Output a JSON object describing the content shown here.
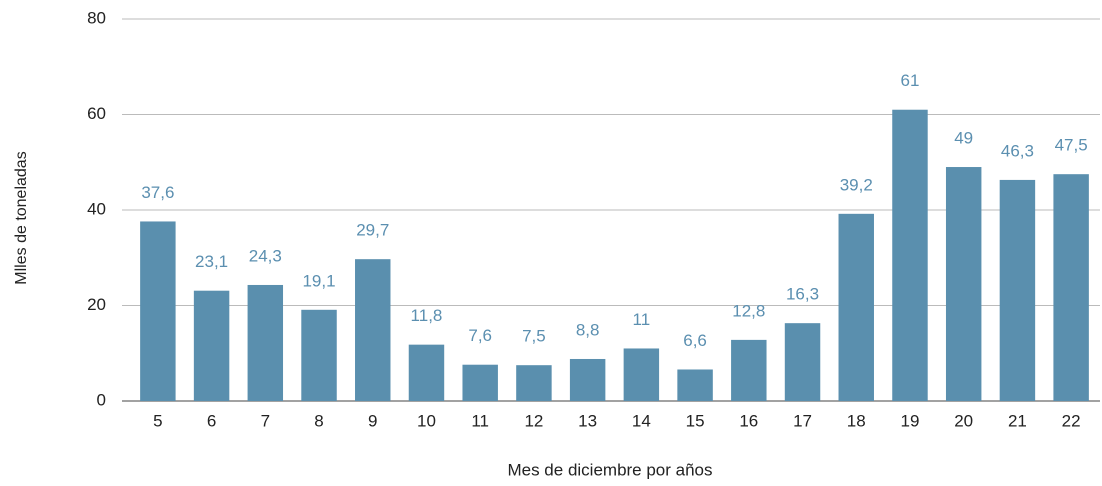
{
  "chart_data": {
    "type": "bar",
    "categories": [
      "5",
      "6",
      "7",
      "8",
      "9",
      "10",
      "11",
      "12",
      "13",
      "14",
      "15",
      "16",
      "17",
      "18",
      "19",
      "20",
      "21",
      "22"
    ],
    "values": [
      37.6,
      23.1,
      24.3,
      19.1,
      29.7,
      11.8,
      7.6,
      7.5,
      8.8,
      11,
      6.6,
      12.8,
      16.3,
      39.2,
      61,
      49,
      46.3,
      47.5
    ],
    "value_labels": [
      "37,6",
      "23,1",
      "24,3",
      "19,1",
      "29,7",
      "11,8",
      "7,6",
      "7,5",
      "8,8",
      "11",
      "6,6",
      "12,8",
      "16,3",
      "39,2",
      "61",
      "49",
      "46,3",
      "47,5"
    ],
    "color": "#5a8fae",
    "x_label": "Mes de diciembre por años",
    "y_label": "Mlles de toneladas",
    "ylim": [
      0,
      80
    ],
    "yticks": [
      0,
      20,
      40,
      60,
      80
    ],
    "grid": true
  }
}
